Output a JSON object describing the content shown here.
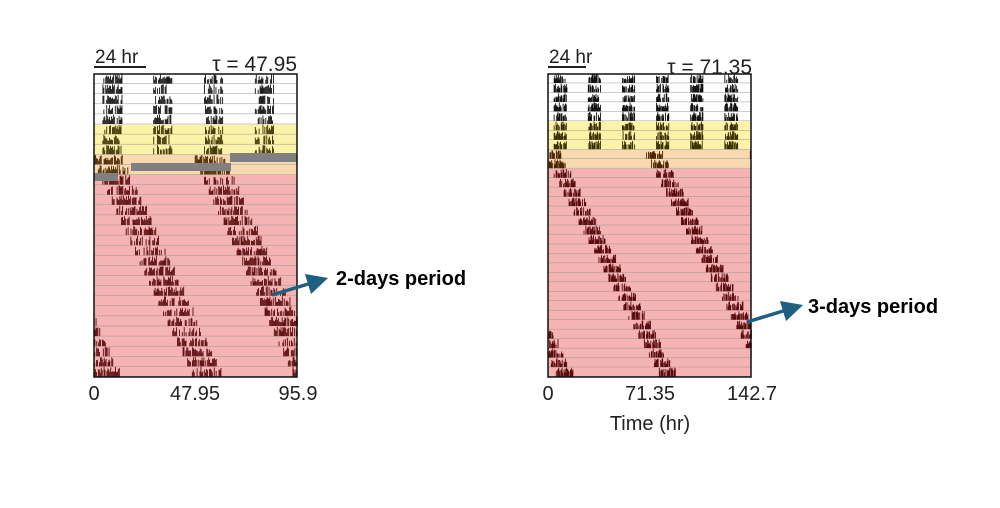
{
  "chart_data": [
    {
      "type": "actogram",
      "scale_bar_label": "24 hr",
      "tau_label": "τ = 47.95",
      "tau": 47.95,
      "x_ticks": [
        "0",
        "47.95",
        "95.9"
      ],
      "xlim": [
        0,
        95.9
      ],
      "xlabel": "",
      "rows": 30,
      "phases": [
        {
          "name": "baseline",
          "color": "#ffffff",
          "rows": 5
        },
        {
          "name": "transition-yellow",
          "color": "#fbf3a8",
          "rows": 3
        },
        {
          "name": "transition-orange",
          "color": "#f8d9b0",
          "rows": 2
        },
        {
          "name": "treatment-pink",
          "color": "#f6b3b3",
          "rows": 20
        }
      ],
      "activity_period_hr": [
        24,
        48
      ],
      "annotation": "2-days period"
    },
    {
      "type": "actogram",
      "scale_bar_label": "24 hr",
      "tau_label": "τ = 71.35",
      "tau": 71.35,
      "x_ticks": [
        "0",
        "71.35",
        "142.7"
      ],
      "xlim": [
        0,
        142.7
      ],
      "xlabel": "Time (hr)",
      "rows": 32,
      "phases": [
        {
          "name": "baseline",
          "color": "#ffffff",
          "rows": 5
        },
        {
          "name": "transition-yellow",
          "color": "#fbf3a8",
          "rows": 3
        },
        {
          "name": "transition-orange",
          "color": "#f8d9b0",
          "rows": 2
        },
        {
          "name": "treatment-pink",
          "color": "#f6b3b3",
          "rows": 22
        }
      ],
      "activity_period_hr": [
        24,
        72
      ],
      "annotation": "3-days period"
    }
  ],
  "colors": {
    "arrow": "#1f5f80",
    "gap": "#808080"
  }
}
